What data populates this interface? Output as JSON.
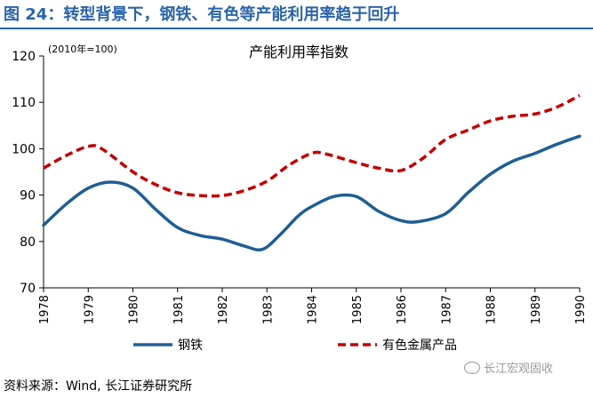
{
  "figure_title": "图 24：转型背景下，钢铁、有色等产能利用率趋于回升",
  "source": "资料来源：Wind, 长江证券研究所",
  "watermark": "长江宏观固收",
  "chart_data": {
    "type": "line",
    "title": "产能利用率指数",
    "note": "(2010年=100)",
    "xlabel": "",
    "ylabel": "",
    "x": [
      1978,
      1979,
      1980,
      1981,
      1982,
      1983,
      1984,
      1985,
      1986,
      1987,
      1988,
      1989,
      1990
    ],
    "x_tick_labels": [
      "1978",
      "1979",
      "1980",
      "1981",
      "1982",
      "1983",
      "1984",
      "1985",
      "1986",
      "1987",
      "1988",
      "1989",
      "1990"
    ],
    "ylim": [
      70,
      120
    ],
    "y_ticks": [
      70,
      80,
      90,
      100,
      110,
      120
    ],
    "y_tick_labels": [
      "70",
      "80",
      "90",
      "100",
      "110",
      "120"
    ],
    "grid": false,
    "legend_position": "bottom",
    "series": [
      {
        "name": "钢铁",
        "color": "#1f5e93",
        "style": "solid",
        "points": [
          [
            1978,
            83.5
          ],
          [
            1978.5,
            88.0
          ],
          [
            1979,
            91.5
          ],
          [
            1979.5,
            92.8
          ],
          [
            1980,
            91.5
          ],
          [
            1980.5,
            87.0
          ],
          [
            1981,
            83.0
          ],
          [
            1981.5,
            81.3
          ],
          [
            1982,
            80.5
          ],
          [
            1982.5,
            79.0
          ],
          [
            1982.9,
            78.3
          ],
          [
            1983.3,
            81.5
          ],
          [
            1983.7,
            85.5
          ],
          [
            1984,
            87.5
          ],
          [
            1984.5,
            89.7
          ],
          [
            1985,
            89.7
          ],
          [
            1985.5,
            86.5
          ],
          [
            1986,
            84.5
          ],
          [
            1986.4,
            84.3
          ],
          [
            1987,
            86.0
          ],
          [
            1987.5,
            90.5
          ],
          [
            1988,
            94.5
          ],
          [
            1988.5,
            97.3
          ],
          [
            1989,
            99.0
          ],
          [
            1989.5,
            101.0
          ],
          [
            1990,
            102.7
          ]
        ]
      },
      {
        "name": "有色金属产品",
        "color": "#c00000",
        "style": "dashed",
        "points": [
          [
            1978,
            95.8
          ],
          [
            1978.5,
            98.5
          ],
          [
            1979,
            100.5
          ],
          [
            1979.3,
            100.0
          ],
          [
            1980,
            95.0
          ],
          [
            1980.5,
            92.3
          ],
          [
            1981,
            90.5
          ],
          [
            1981.5,
            89.9
          ],
          [
            1982,
            89.9
          ],
          [
            1982.5,
            91.0
          ],
          [
            1983,
            93.0
          ],
          [
            1983.5,
            96.5
          ],
          [
            1984,
            99.0
          ],
          [
            1984.3,
            98.9
          ],
          [
            1985,
            97.0
          ],
          [
            1985.5,
            95.8
          ],
          [
            1986,
            95.3
          ],
          [
            1986.5,
            98.0
          ],
          [
            1987,
            102.0
          ],
          [
            1987.5,
            104.0
          ],
          [
            1988,
            106.0
          ],
          [
            1988.5,
            107.0
          ],
          [
            1989,
            107.5
          ],
          [
            1989.5,
            109.0
          ],
          [
            1990,
            111.5
          ]
        ]
      }
    ]
  }
}
